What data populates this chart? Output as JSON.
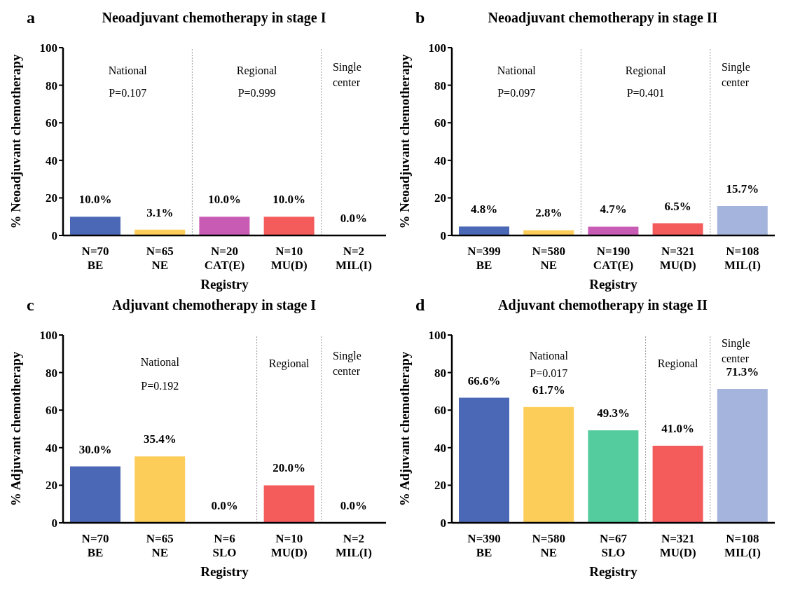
{
  "chart_data": [
    {
      "type": "bar",
      "title": "Neoadjuvant chemotherapy in stage I",
      "xlabel": "Registry",
      "ylabel": "% Neoadjuvant chemotherapy",
      "categories": [
        "N=70\nBE",
        "N=65\nNE",
        "N=20\nCAT(E)",
        "N=10\nMU(D)",
        "N=2\nMIL(I)"
      ],
      "values": [
        10.0,
        3.1,
        10.0,
        10.0,
        0.0
      ],
      "colors": [
        "#4a68b5",
        "#fdcd5a",
        "#c85bb4",
        "#f45c5c",
        "#a5b4dc"
      ],
      "value_labels": [
        "10.0%",
        "3.1%",
        "10.0%",
        "10.0%",
        "0.0%"
      ],
      "ylim": [
        0,
        100
      ],
      "yticks": [
        0,
        20,
        40,
        60,
        80,
        100
      ],
      "grid": false,
      "legend": false,
      "annotations": [
        "a",
        "National",
        "P=0.107",
        "Regional",
        "P=0.999",
        "Single center"
      ]
    },
    {
      "type": "bar",
      "title": "Neoadjuvant chemotherapy in stage II",
      "xlabel": "Registry",
      "ylabel": "% Neoadjuvant chemotherapy",
      "categories": [
        "N=399\nBE",
        "N=580\nNE",
        "N=190\nCAT(E)",
        "N=321\nMU(D)",
        "N=108\nMIL(I)"
      ],
      "values": [
        4.8,
        2.8,
        4.7,
        6.5,
        15.7
      ],
      "colors": [
        "#4a68b5",
        "#fdcd5a",
        "#c85bb4",
        "#f45c5c",
        "#a5b4dc"
      ],
      "value_labels": [
        "4.8%",
        "2.8%",
        "4.7%",
        "6.5%",
        "15.7%"
      ],
      "ylim": [
        0,
        100
      ],
      "yticks": [
        0,
        20,
        40,
        60,
        80,
        100
      ],
      "grid": false,
      "legend": false,
      "annotations": [
        "b",
        "National",
        "P=0.097",
        "Regional",
        "P=0.401",
        "Single center"
      ]
    },
    {
      "type": "bar",
      "title": "Adjuvant chemotherapy in stage I",
      "xlabel": "Registry",
      "ylabel": "% Adjuvant chemotherapy",
      "categories": [
        "N=70\nBE",
        "N=65\nNE",
        "N=6\nSLO",
        "N=10\nMU(D)",
        "N=2\nMIL(I)"
      ],
      "values": [
        30.0,
        35.4,
        0.0,
        20.0,
        0.0
      ],
      "colors": [
        "#4a68b5",
        "#fdcd5a",
        "#55cc9e",
        "#f45c5c",
        "#a5b4dc"
      ],
      "value_labels": [
        "30.0%",
        "35.4%",
        "0.0%",
        "20.0%",
        "0.0%"
      ],
      "ylim": [
        0,
        100
      ],
      "yticks": [
        0,
        20,
        40,
        60,
        80,
        100
      ],
      "grid": false,
      "legend": false,
      "annotations": [
        "c",
        "National",
        "P=0.192",
        "Regional",
        "Single center"
      ]
    },
    {
      "type": "bar",
      "title": "Adjuvant chemotherapy in stage II",
      "xlabel": "Registry",
      "ylabel": "% Adjuvant chemotherapy",
      "categories": [
        "N=390\nBE",
        "N=580\nNE",
        "N=67\nSLO",
        "N=321\nMU(D)",
        "N=108\nMIL(I)"
      ],
      "values": [
        66.6,
        61.7,
        49.3,
        41.0,
        71.3
      ],
      "colors": [
        "#4a68b5",
        "#fdcd5a",
        "#55cc9e",
        "#f45c5c",
        "#a5b4dc"
      ],
      "value_labels": [
        "66.6%",
        "61.7%",
        "49.3%",
        "41.0%",
        "71.3%"
      ],
      "ylim": [
        0,
        100
      ],
      "yticks": [
        0,
        20,
        40,
        60,
        80,
        100
      ],
      "grid": false,
      "legend": false,
      "annotations": [
        "d",
        "National",
        "P=0.017",
        "Regional",
        "Single center"
      ]
    }
  ]
}
